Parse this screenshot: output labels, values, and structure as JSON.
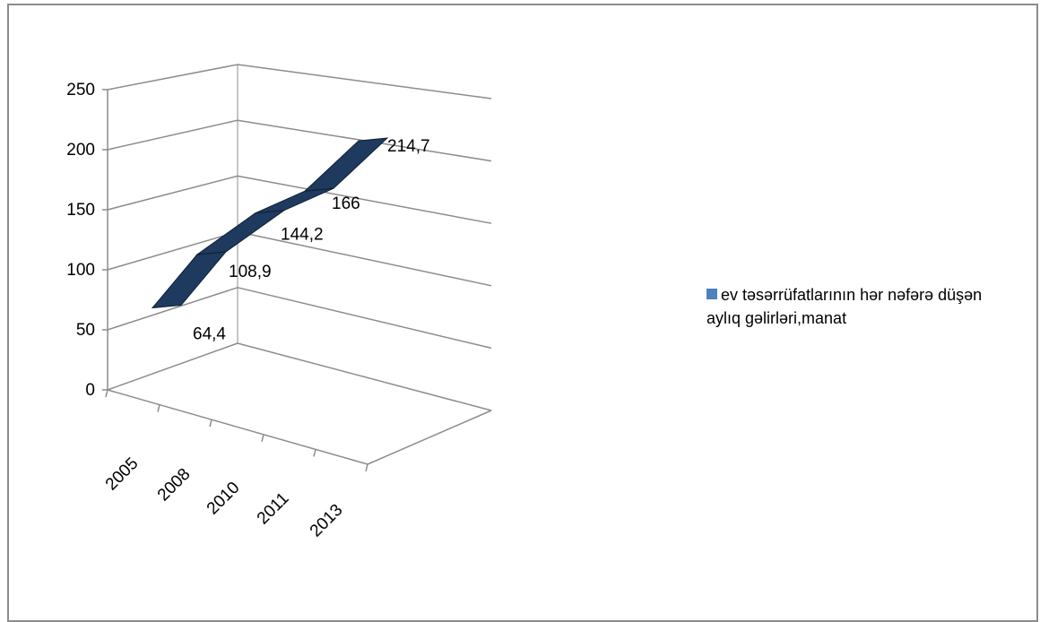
{
  "chart_data": {
    "type": "area",
    "categories": [
      "2005",
      "2008",
      "2010",
      "2011",
      "2013"
    ],
    "series": [
      {
        "name": "ev təsərrüfatlarının hər nəfərə düşən aylıq gəlirləri,manat",
        "values": [
          64.4,
          108.9,
          144.2,
          166,
          214.7
        ],
        "labels": [
          "64,4",
          "108,9",
          "144,2",
          "166",
          "214,7"
        ]
      }
    ],
    "yticks": [
      "0",
      "50",
      "100",
      "150",
      "200",
      "250"
    ],
    "ylim": [
      0,
      250
    ],
    "grid": true,
    "legend": "right",
    "colors": {
      "series_fill": "#1f3a5f",
      "legend_swatch": "#4f81bd",
      "grid": "#8c8c8c"
    }
  }
}
